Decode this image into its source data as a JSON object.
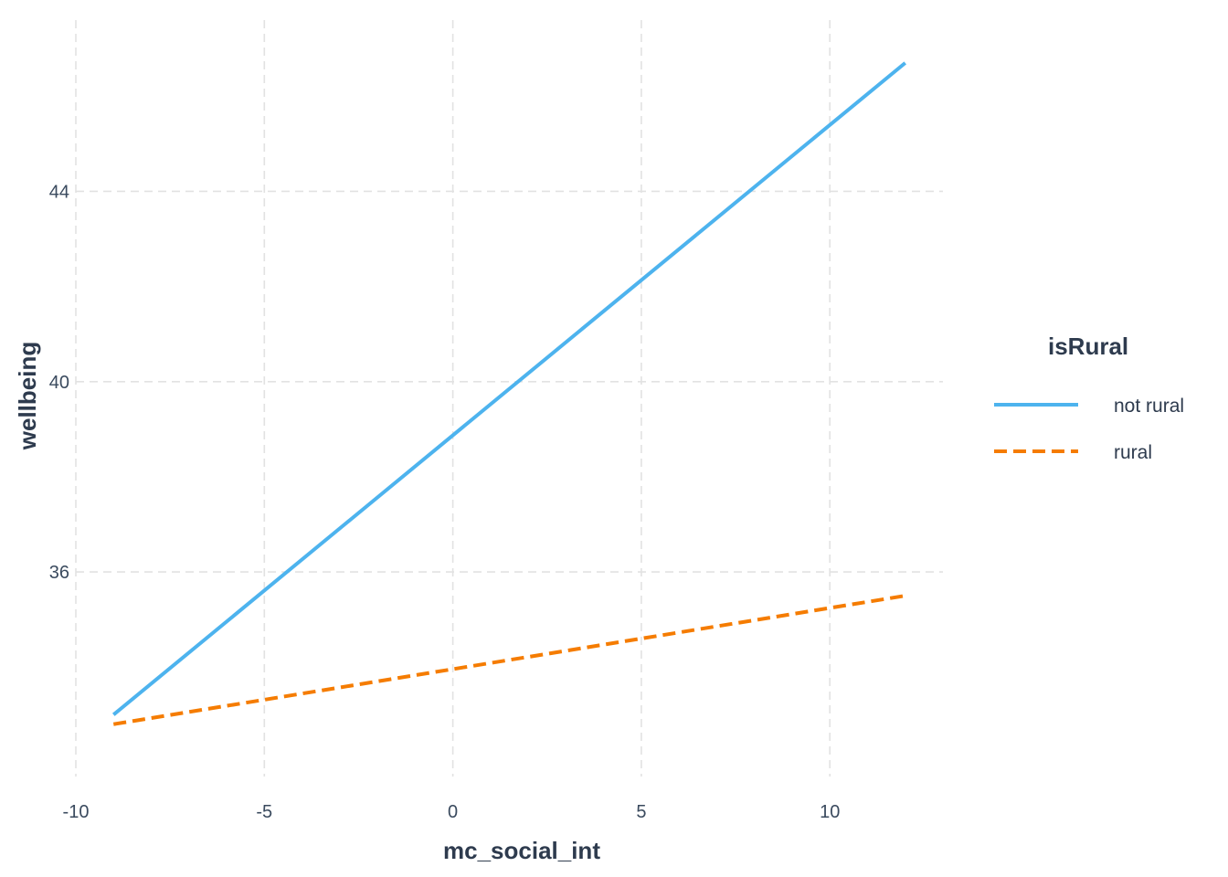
{
  "chart_data": {
    "type": "line",
    "title": "",
    "xlabel": "mc_social_int",
    "ylabel": "wellbeing",
    "xlim": [
      -10,
      13
    ],
    "ylim": [
      31.7,
      47.6
    ],
    "x_ticks": [
      -10,
      -5,
      0,
      5,
      10
    ],
    "x_tick_labels": [
      "-10",
      "-5",
      "0",
      "5",
      "10"
    ],
    "y_ticks": [
      36,
      40,
      44
    ],
    "y_tick_labels": [
      "36",
      "40",
      "44"
    ],
    "grid": true,
    "legend": {
      "title": "isRural",
      "position": "right"
    },
    "series": [
      {
        "name": "not rural",
        "x": [
          -9,
          12
        ],
        "y": [
          33.0,
          46.7
        ],
        "color": "#4db3ee",
        "linestyle": "solid"
      },
      {
        "name": "rural",
        "x": [
          -9,
          12
        ],
        "y": [
          32.8,
          35.5
        ],
        "color": "#f57c00",
        "linestyle": "dashed"
      }
    ]
  }
}
